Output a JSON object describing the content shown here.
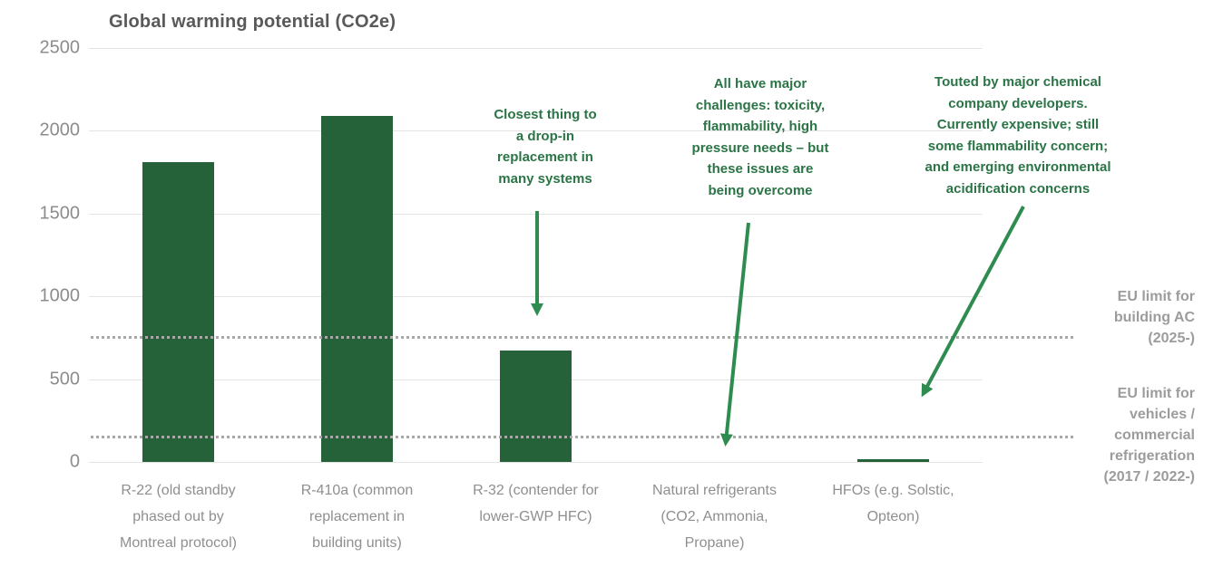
{
  "chart_data": {
    "type": "bar",
    "title": "Global warming potential (CO2e)",
    "categories": [
      [
        "R-22 (old standby",
        "phased out by",
        "Montreal protocol)"
      ],
      [
        "R-410a (common",
        "replacement in",
        "building units)"
      ],
      [
        "R-32 (contender for",
        "lower-GWP HFC)"
      ],
      [
        "Natural refrigerants",
        "(CO2, Ammonia,",
        "Propane)"
      ],
      [
        "HFOs (e.g. Solstic,",
        "Opteon)"
      ]
    ],
    "values": [
      1810,
      2088,
      675,
      0,
      10
    ],
    "xlabel": "",
    "ylabel": "",
    "ylim": [
      0,
      2500
    ],
    "yticks": [
      0,
      500,
      1000,
      1500,
      2000,
      2500
    ],
    "grid": "horizontal",
    "legend": "none",
    "bar_color": "#256239",
    "reference_lines": [
      {
        "value": 750,
        "style": "dotted",
        "label_lines": [
          "EU limit for",
          "building AC",
          "(2025-)"
        ]
      },
      {
        "value": 150,
        "style": "dotted",
        "label_lines": [
          "EU limit for",
          "vehicles /",
          "commercial",
          "refrigeration",
          "(2017 / 2022-)"
        ]
      }
    ]
  },
  "annotations": [
    {
      "lines": [
        "Closest thing to",
        "a drop-in",
        "replacement in",
        "many systems"
      ]
    },
    {
      "lines": [
        "All have major",
        "challenges: toxicity,",
        "flammability, high",
        "pressure needs – but",
        "these issues are",
        "being overcome"
      ]
    },
    {
      "lines": [
        "Touted by major chemical",
        "company developers.",
        "Currently expensive; still",
        "some flammability concern;",
        "and emerging environmental",
        "acidification concerns"
      ]
    }
  ],
  "colors": {
    "bar_green": "#256239",
    "annotation_green": "#2a7446",
    "arrow_green": "#2f8c50",
    "title_gray": "#595959",
    "axis_tick_gray": "#8c8c8c",
    "category_label_gray": "#8f8f8f",
    "limit_label_gray": "#9c9c9c",
    "gridline_gray": "#e4e4e4",
    "dotted_line_gray": "#a8a8a8"
  }
}
